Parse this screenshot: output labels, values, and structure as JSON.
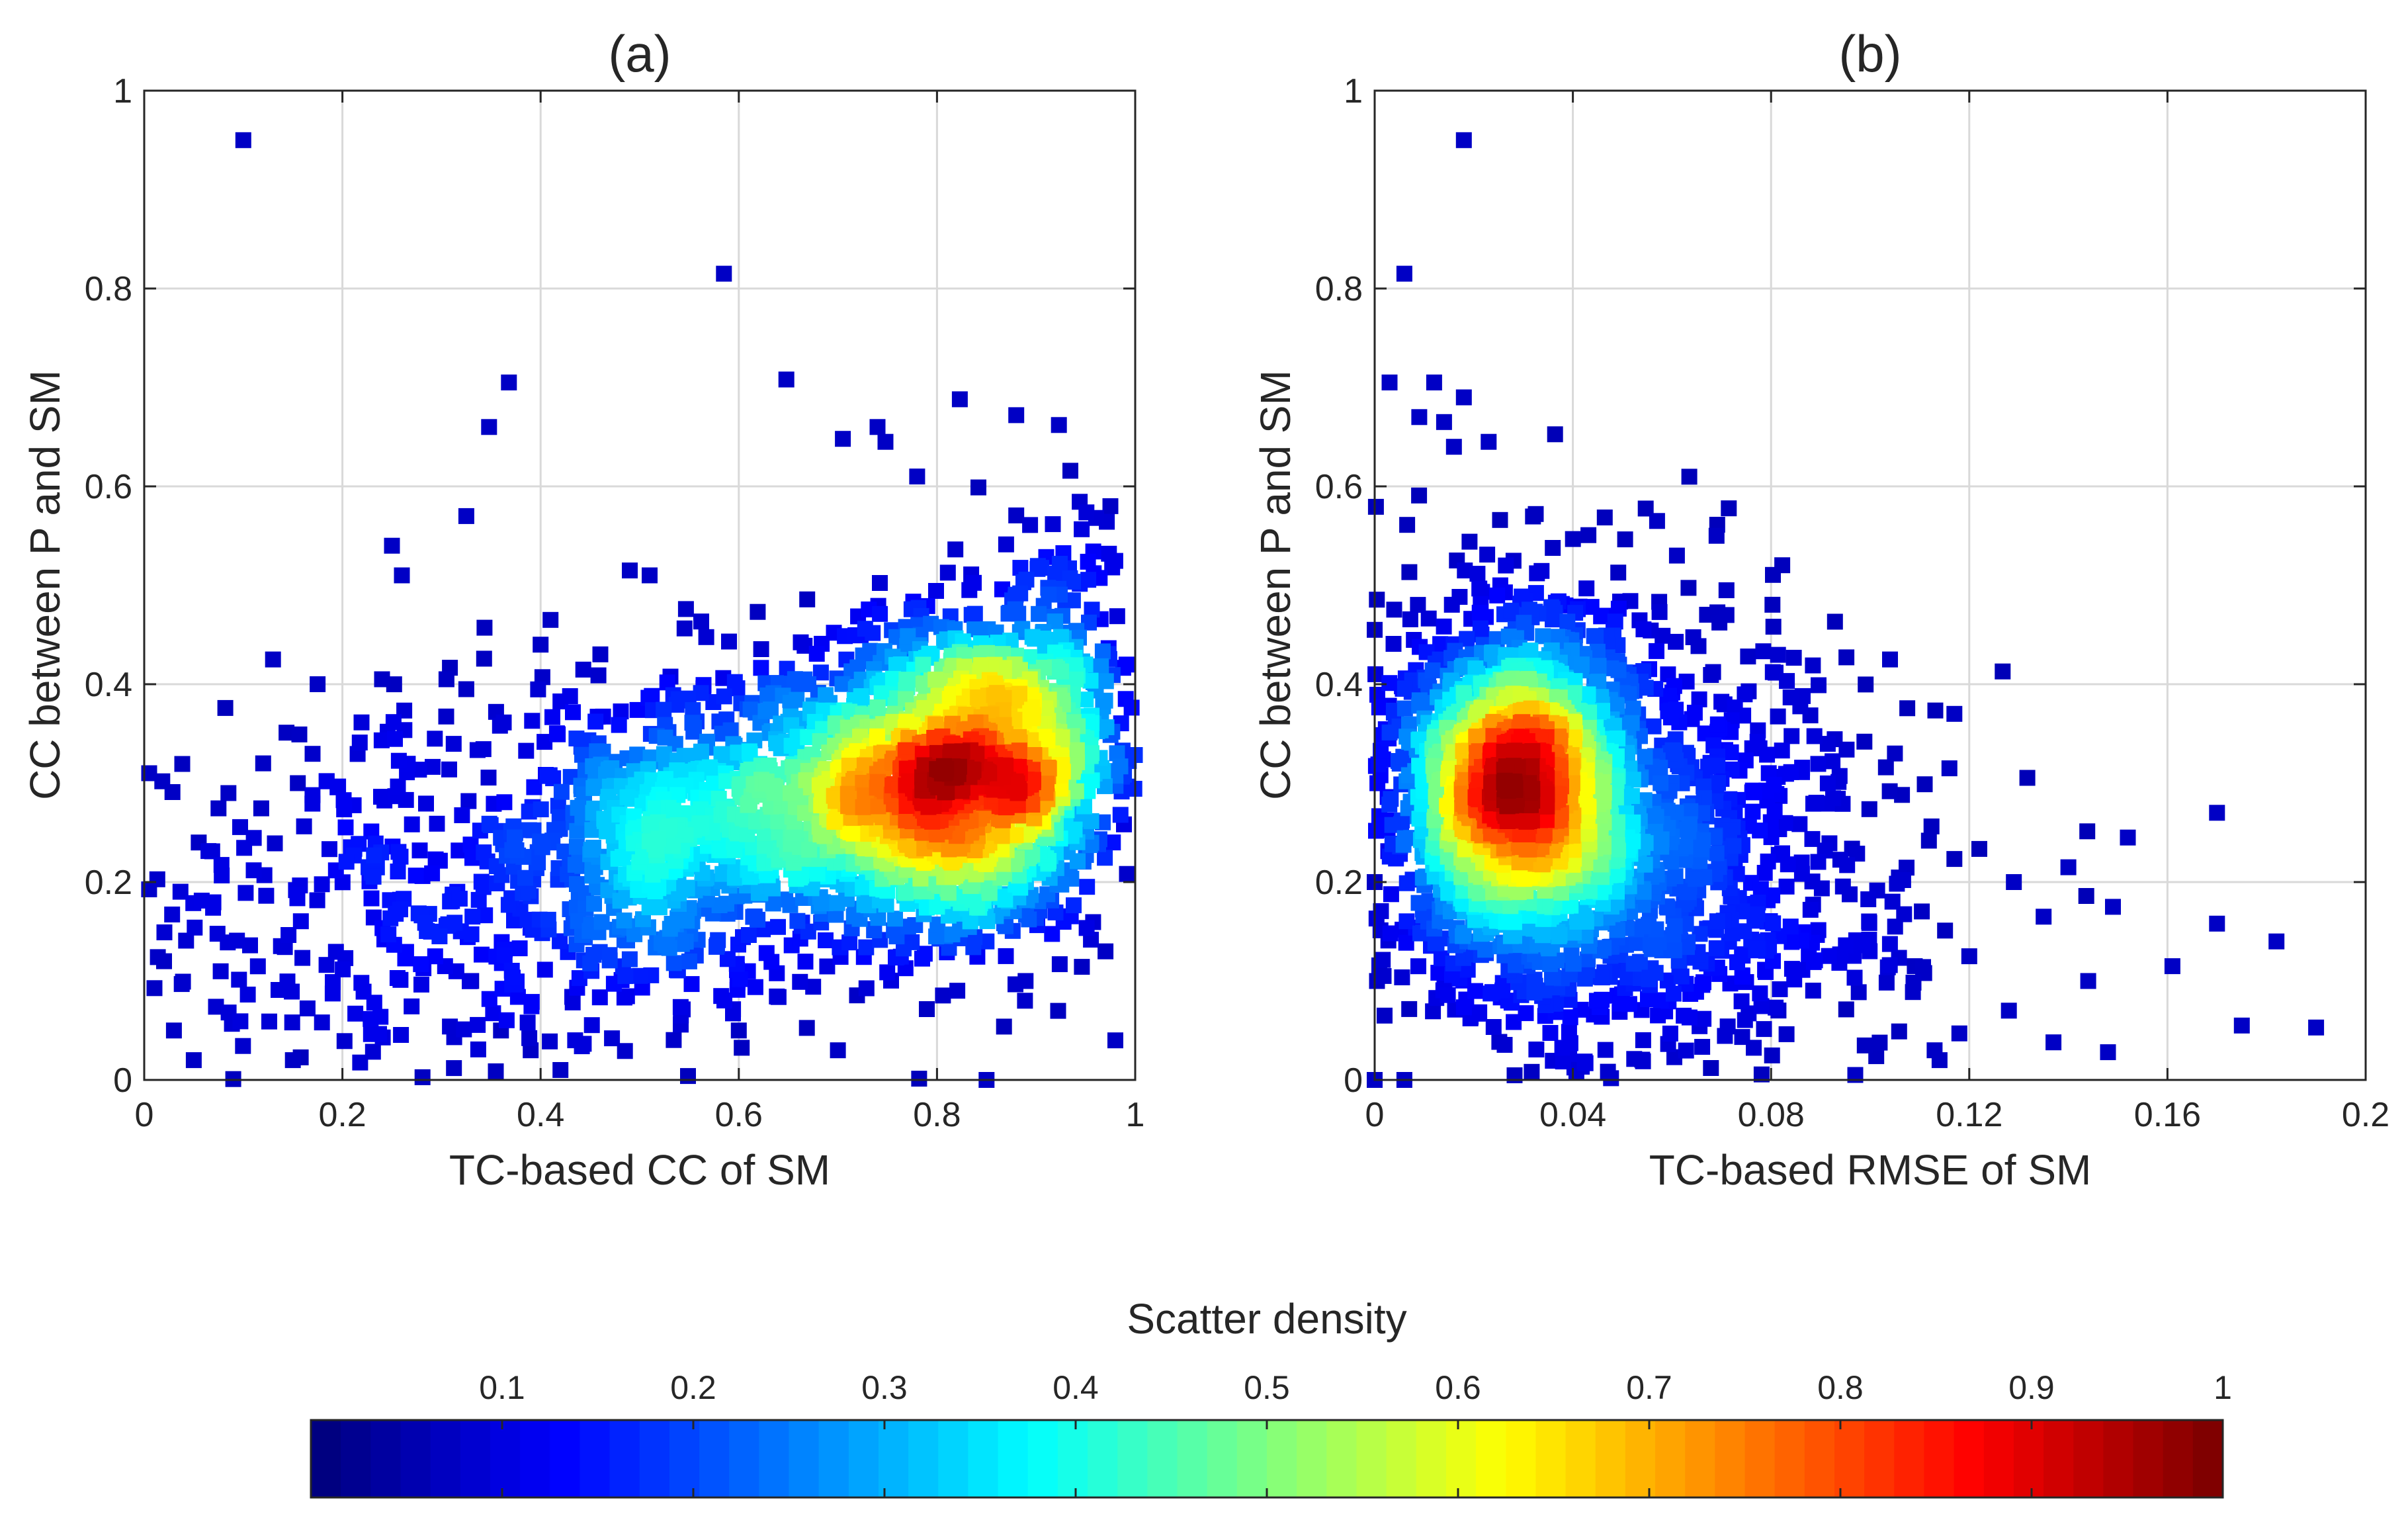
{
  "chart_data": [
    {
      "type": "scatter",
      "title": "(a)",
      "xlabel": "TC-based CC of SM",
      "ylabel": "CC between P and SM",
      "xlim": [
        0,
        1
      ],
      "ylim": [
        0,
        1
      ],
      "xticks": [
        0,
        0.2,
        0.4,
        0.6,
        0.8,
        1
      ],
      "yticks": [
        0,
        0.2,
        0.4,
        0.6,
        0.8,
        1
      ],
      "xtick_labels": [
        "0",
        "0.2",
        "0.4",
        "0.6",
        "0.8",
        "1"
      ],
      "ytick_labels": [
        "0",
        "0.2",
        "0.4",
        "0.6",
        "0.8",
        "1"
      ],
      "grid": true,
      "density_clusters": [
        {
          "cx": 0.82,
          "cy": 0.31,
          "sx": 0.075,
          "sy": 0.08,
          "n": 1400
        },
        {
          "cx": 0.66,
          "cy": 0.27,
          "sx": 0.1,
          "sy": 0.075,
          "n": 700
        },
        {
          "cx": 0.5,
          "cy": 0.24,
          "sx": 0.09,
          "sy": 0.08,
          "n": 350
        },
        {
          "cx": 0.92,
          "cy": 0.36,
          "sx": 0.05,
          "sy": 0.1,
          "n": 300
        },
        {
          "cx": 0.28,
          "cy": 0.16,
          "sx": 0.17,
          "sy": 0.1,
          "n": 380
        }
      ],
      "outliers": [
        [
          0.1,
          0.95
        ],
        [
          0.585,
          0.815
        ],
        [
          0.368,
          0.705
        ],
        [
          0.648,
          0.708
        ],
        [
          0.348,
          0.66
        ],
        [
          0.823,
          0.688
        ],
        [
          0.88,
          0.672
        ],
        [
          0.923,
          0.662
        ],
        [
          0.705,
          0.648
        ],
        [
          0.74,
          0.66
        ],
        [
          0.748,
          0.645
        ],
        [
          0.325,
          0.57
        ],
        [
          0.25,
          0.54
        ],
        [
          0.26,
          0.51
        ],
        [
          0.975,
          0.58
        ],
        [
          0.78,
          0.61
        ],
        [
          0.13,
          0.425
        ],
        [
          0.175,
          0.4
        ],
        [
          0.24,
          0.405
        ],
        [
          0.305,
          0.405
        ],
        [
          0.325,
          0.395
        ],
        [
          0.41,
          0.465
        ],
        [
          0.4,
          0.44
        ],
        [
          0.49,
          0.515
        ],
        [
          0.51,
          0.51
        ],
        [
          0.055,
          0.24
        ],
        [
          0.02,
          0.12
        ],
        [
          0.03,
          0.05
        ],
        [
          0.05,
          0.02
        ],
        [
          0.15,
          0.02
        ],
        [
          0.42,
          0.01
        ],
        [
          0.85,
          0.0
        ],
        [
          0.97,
          0.13
        ],
        [
          0.98,
          0.04
        ],
        [
          0.39,
          0.03
        ],
        [
          0.6,
          0.05
        ],
        [
          0.7,
          0.03
        ],
        [
          0.155,
          0.3
        ],
        [
          0.12,
          0.32
        ],
        [
          0.085,
          0.29
        ],
        [
          0.005,
          0.31
        ],
        [
          0.33,
          0.1
        ],
        [
          0.36,
          0.05
        ]
      ]
    },
    {
      "type": "scatter",
      "title": "(b)",
      "xlabel": "TC-based RMSE of SM",
      "ylabel": "CC between P and SM",
      "xlim": [
        0,
        0.2
      ],
      "ylim": [
        0,
        1
      ],
      "xticks": [
        0,
        0.04,
        0.08,
        0.12,
        0.16,
        0.2
      ],
      "yticks": [
        0,
        0.2,
        0.4,
        0.6,
        0.8,
        1
      ],
      "xtick_labels": [
        "0",
        "0.04",
        "0.08",
        "0.12",
        "0.16",
        "0.2"
      ],
      "ytick_labels": [
        "0",
        "0.2",
        "0.4",
        "0.6",
        "0.8",
        "1"
      ],
      "grid": true,
      "density_clusters": [
        {
          "cx": 0.028,
          "cy": 0.29,
          "sx": 0.011,
          "sy": 0.075,
          "n": 1600
        },
        {
          "cx": 0.033,
          "cy": 0.3,
          "sx": 0.018,
          "sy": 0.12,
          "n": 800
        },
        {
          "cx": 0.052,
          "cy": 0.2,
          "sx": 0.02,
          "sy": 0.13,
          "n": 450
        },
        {
          "cx": 0.08,
          "cy": 0.2,
          "sx": 0.02,
          "sy": 0.1,
          "n": 250
        }
      ],
      "outliers": [
        [
          0.018,
          0.95
        ],
        [
          0.006,
          0.815
        ],
        [
          0.003,
          0.705
        ],
        [
          0.012,
          0.705
        ],
        [
          0.018,
          0.69
        ],
        [
          0.009,
          0.67
        ],
        [
          0.014,
          0.665
        ],
        [
          0.023,
          0.645
        ],
        [
          0.016,
          0.64
        ],
        [
          0.0,
          0.455
        ],
        [
          0.057,
          0.565
        ],
        [
          0.061,
          0.53
        ],
        [
          0.069,
          0.55
        ],
        [
          0.071,
          0.495
        ],
        [
          0.071,
          0.47
        ],
        [
          0.104,
          0.425
        ],
        [
          0.117,
          0.37
        ],
        [
          0.116,
          0.315
        ],
        [
          0.17,
          0.27
        ],
        [
          0.152,
          0.245
        ],
        [
          0.129,
          0.2
        ],
        [
          0.14,
          0.215
        ],
        [
          0.149,
          0.175
        ],
        [
          0.135,
          0.165
        ],
        [
          0.161,
          0.115
        ],
        [
          0.17,
          0.158
        ],
        [
          0.182,
          0.14
        ],
        [
          0.128,
          0.07
        ],
        [
          0.144,
          0.1
        ],
        [
          0.175,
          0.055
        ],
        [
          0.19,
          0.053
        ],
        [
          0.137,
          0.038
        ],
        [
          0.148,
          0.028
        ],
        [
          0.12,
          0.125
        ],
        [
          0.118,
          0.047
        ],
        [
          0.113,
          0.03
        ],
        [
          0.114,
          0.02
        ],
        [
          0.097,
          0.005
        ],
        [
          0.0,
          0.2
        ],
        [
          0.0,
          0.0
        ],
        [
          0.006,
          0.0
        ],
        [
          0.002,
          0.065
        ],
        [
          0.109,
          0.115
        ],
        [
          0.105,
          0.33
        ]
      ]
    }
  ],
  "colorbar": {
    "title": "Scatter density",
    "ticks": [
      0.1,
      0.2,
      0.3,
      0.4,
      0.5,
      0.6,
      0.7,
      0.8,
      0.9,
      1
    ],
    "tick_labels": [
      "0.1",
      "0.2",
      "0.3",
      "0.4",
      "0.5",
      "0.6",
      "0.7",
      "0.8",
      "0.9",
      "1"
    ],
    "colormap": "jet",
    "levels": 64
  }
}
